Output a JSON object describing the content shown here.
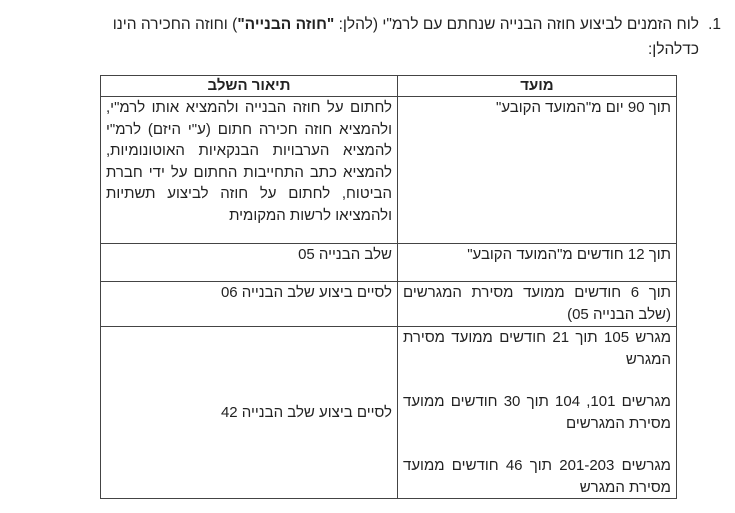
{
  "intro": {
    "number": "1.",
    "text_before": "לוח הזמנים לביצוע חוזה הבנייה שנחתם עם לרמ\"י (להלן: ",
    "bold_term": "\"חוזה הבנייה\"",
    "text_after": ") וחוזה החכירה הינו",
    "line2": "כדלהלן:"
  },
  "table": {
    "headers": [
      "מועד",
      "תיאור השלב"
    ],
    "rows": [
      {
        "deadline": [
          "תוך 90 יום מ\"המועד הקובע\""
        ],
        "description": "לחתום על חוזה הבנייה ולהמציא אותו לרמ\"י, ולהמציא חוזה חכירה חתום (ע\"י היזם) לרמ\"י להמציא הערבויות הבנקאיות האוטונומיות, להמציא כתב התחייבות החתום על ידי חברת הביטוח, לחתום על חוזה לביצוע תשתיות ולהמציאו לרשות המקומית"
      },
      {
        "deadline": [
          "תוך 12 חודשים מ\"המועד הקובע\""
        ],
        "description": "שלב הבנייה 05"
      },
      {
        "deadline": [
          "תוך 6 חודשים ממועד מסירת המגרשים (שלב הבנייה 05)"
        ],
        "description": "לסיים ביצוע שלב הבנייה 06"
      },
      {
        "deadline": [
          "מגרש 105 תוך 21 חודשים ממועד מסירת המגרש",
          "מגרשים 101, 104 תוך 30 חודשים ממועד מסירת המגרשים",
          "מגרשים 201-203 תוך 46 חודשים ממועד מסירת המגרש"
        ],
        "description": "לסיים ביצוע שלב הבנייה 42"
      }
    ]
  }
}
